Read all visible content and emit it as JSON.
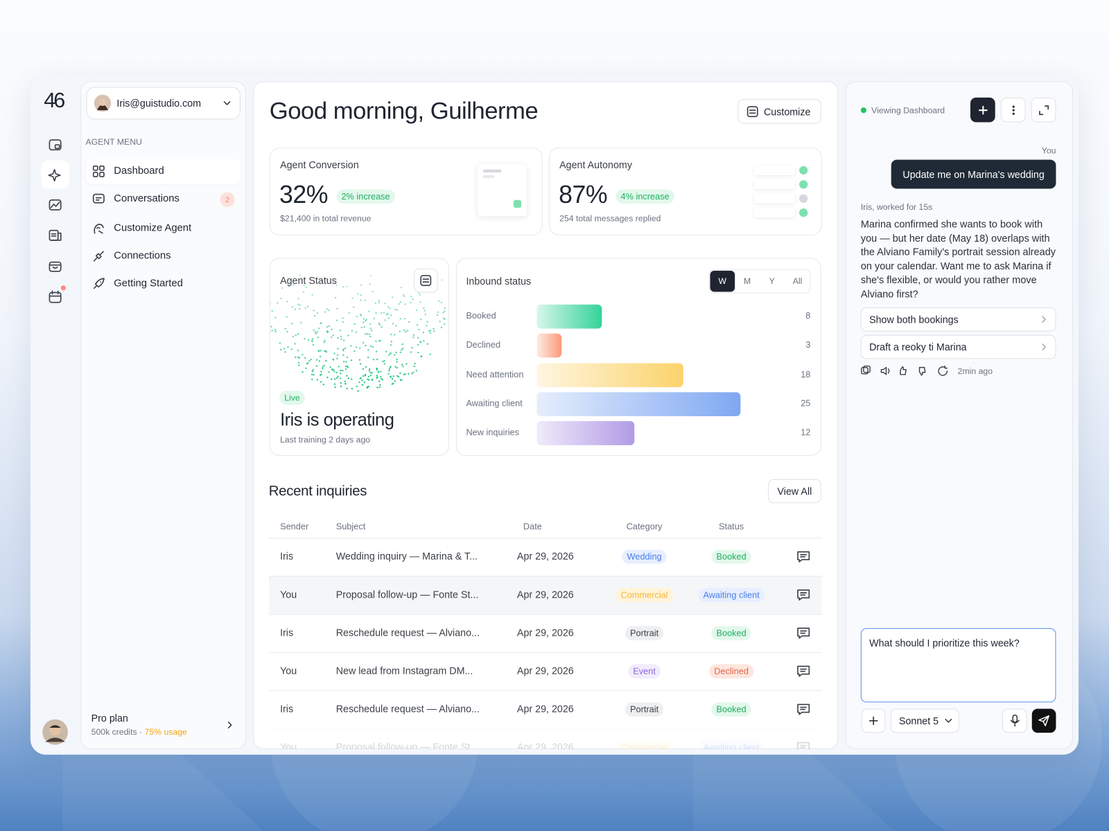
{
  "logo": "46",
  "account": {
    "email": "Iris@guistudio.com"
  },
  "menu": {
    "heading": "AGENT MENU",
    "items": [
      {
        "label": "Dashboard"
      },
      {
        "label": "Conversations",
        "badge": "2"
      },
      {
        "label": "Customize Agent"
      },
      {
        "label": "Connections"
      },
      {
        "label": "Getting Started"
      }
    ]
  },
  "plan": {
    "name": "Pro plan",
    "credits": "500k credits ·",
    "usage": "75% usage"
  },
  "header": {
    "greeting": "Good morning, Guilherme",
    "customize": "Customize"
  },
  "kpis": [
    {
      "title": "Agent Conversion",
      "value": "32%",
      "change": "2% increase",
      "note": "$21,400 in total revenue"
    },
    {
      "title": "Agent Autonomy",
      "value": "87%",
      "change": "4% increase",
      "note": "254 total messages replied"
    }
  ],
  "status": {
    "title": "Agent Status",
    "badge": "Live",
    "headline": "Iris is operating",
    "note": "Last training 2 days ago"
  },
  "inbound": {
    "title": "Inbound status",
    "periods": [
      "W",
      "M",
      "Y",
      "All"
    ],
    "rows": [
      {
        "label": "Booked",
        "value": 8,
        "color": "#34d399"
      },
      {
        "label": "Declined",
        "value": 3,
        "color": "#fb9a7a"
      },
      {
        "label": "Need attention",
        "value": 18,
        "color": "#fcd36b"
      },
      {
        "label": "Awaiting client",
        "value": 25,
        "color": "#7fa8f2"
      },
      {
        "label": "New inquiries",
        "value": 12,
        "color": "#b29be6"
      }
    ]
  },
  "inquiries": {
    "title": "Recent inquiries",
    "view_all": "View All",
    "columns": [
      "Sender",
      "Subject",
      "Date",
      "Category",
      "Status"
    ],
    "rows": [
      {
        "sender": "Iris",
        "subject": "Wedding inquiry — Marina & T...",
        "date": "Apr 29, 2026",
        "category": "Wedding",
        "category_color": "blue",
        "status": "Booked",
        "status_color": "green"
      },
      {
        "sender": "You",
        "subject": "Proposal follow-up — Fonte St...",
        "date": "Apr 29, 2026",
        "category": "Commercial",
        "category_color": "yellow",
        "status": "Awaiting client",
        "status_color": "blue"
      },
      {
        "sender": "Iris",
        "subject": "Reschedule request — Alviano...",
        "date": "Apr 29, 2026",
        "category": "Portrait",
        "category_color": "gray",
        "status": "Booked",
        "status_color": "green"
      },
      {
        "sender": "You",
        "subject": "New lead from Instagram DM...",
        "date": "Apr 29, 2026",
        "category": "Event",
        "category_color": "purple",
        "status": "Declined",
        "status_color": "red"
      },
      {
        "sender": "Iris",
        "subject": "Reschedule request — Alviano...",
        "date": "Apr 29, 2026",
        "category": "Portrait",
        "category_color": "gray",
        "status": "Booked",
        "status_color": "green"
      },
      {
        "sender": "You",
        "subject": "Proposal follow-up — Fonte St...",
        "date": "Apr 29, 2026",
        "category": "Commercial",
        "category_color": "yellow",
        "status": "Awaiting client",
        "status_color": "blue"
      }
    ]
  },
  "chat": {
    "viewing": "Viewing Dashboard",
    "you": "You",
    "user_message": "Update me on Marina's wedding",
    "worked": "Iris, worked for 15s",
    "reply": "Marina confirmed she wants to book with you — but her date (May 18) overlaps with the Alviano Family's portrait session already on your calendar. Want me to ask Marina if she's flexible, or would you rather move Alviano first?",
    "actions": [
      "Show both bookings",
      "Draft a reoky ti Marina"
    ],
    "time": "2min ago",
    "input": "What should I prioritize this week?",
    "model": "Sonnet 5"
  }
}
